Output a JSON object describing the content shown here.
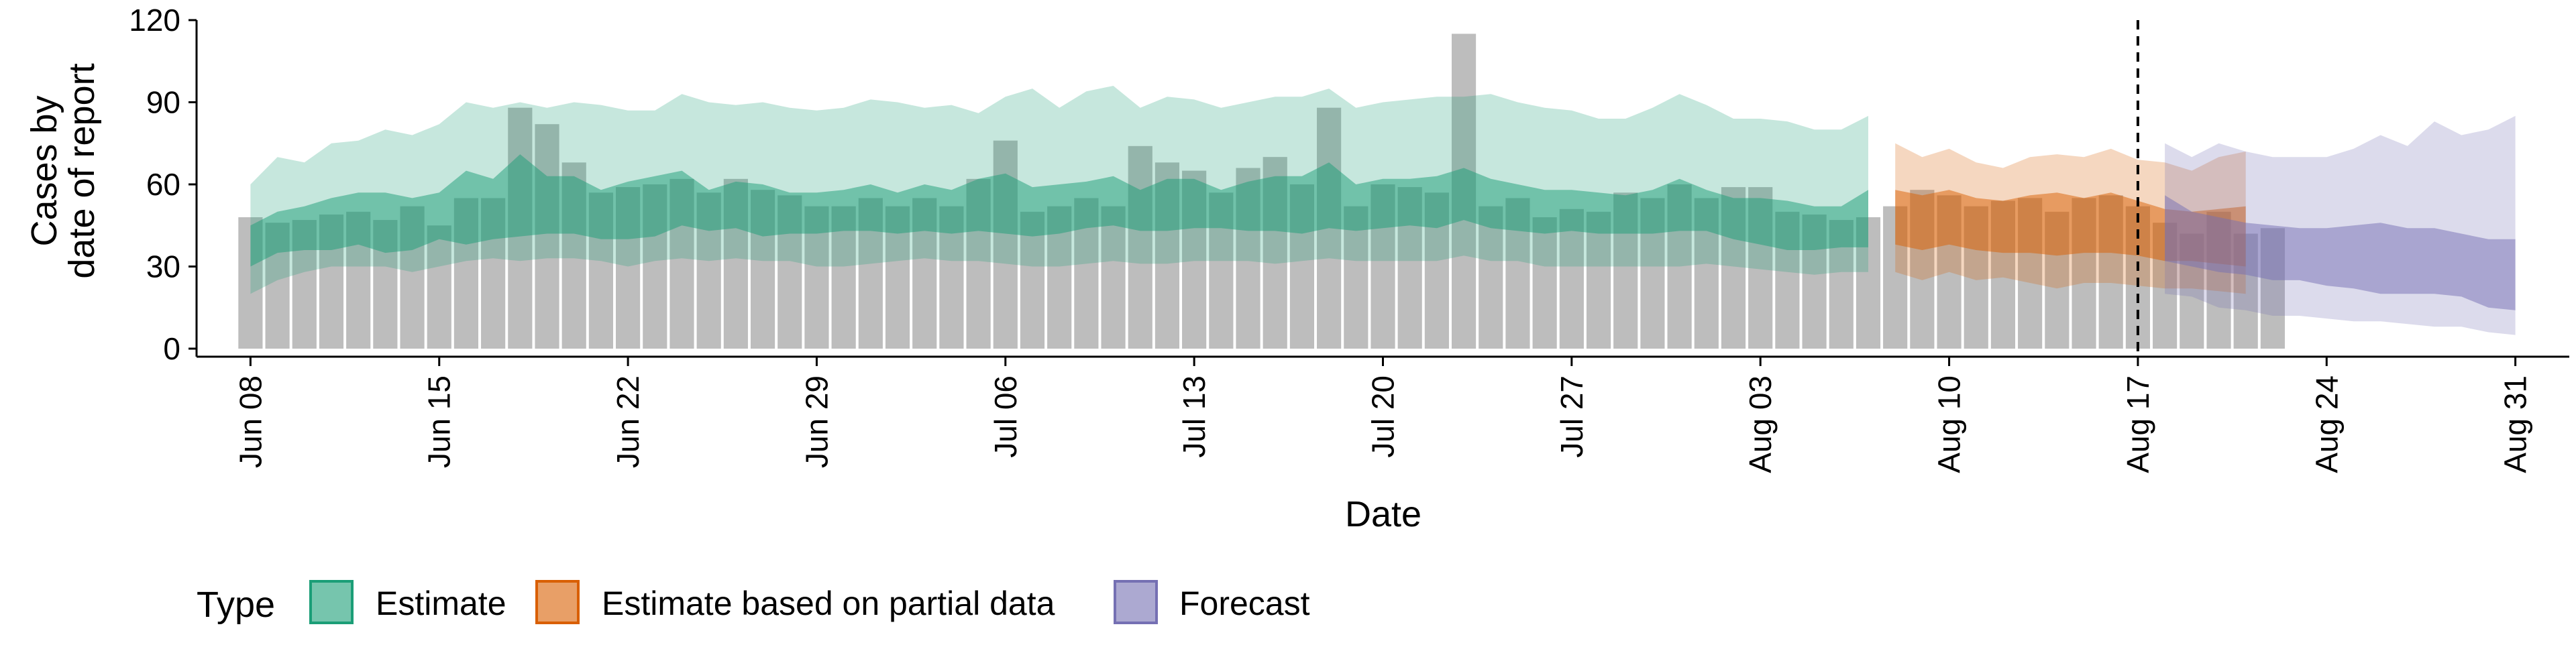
{
  "chart_data": {
    "type": "bar",
    "xlabel": "Date",
    "ylabel_lines": [
      "Cases by",
      "date of report"
    ],
    "ylim": [
      0,
      120
    ],
    "yticks": [
      0,
      30,
      60,
      90,
      120
    ],
    "x_tick_dates": [
      "2020-06-08",
      "2020-06-15",
      "2020-06-22",
      "2020-06-29",
      "2020-07-06",
      "2020-07-13",
      "2020-07-20",
      "2020-07-27",
      "2020-08-03",
      "2020-08-10",
      "2020-08-17",
      "2020-08-24",
      "2020-08-31"
    ],
    "x_tick_labels": [
      "Jun 08",
      "Jun 15",
      "Jun 22",
      "Jun 29",
      "Jul 06",
      "Jul 13",
      "Jul 20",
      "Jul 27",
      "Aug 03",
      "Aug 10",
      "Aug 17",
      "Aug 24",
      "Aug 31"
    ],
    "xlim": [
      "2020-06-06",
      "2020-09-02"
    ],
    "forecast_date": "2020-08-17",
    "grid": false,
    "legend": {
      "title": "Type",
      "position": "bottom-left",
      "entries": [
        {
          "label": "Estimate",
          "fill": "#1b9e77",
          "edge": "#1b9e77"
        },
        {
          "label": "Estimate based on partial data",
          "fill": "#d95f02",
          "edge": "#d95f02"
        },
        {
          "label": "Forecast",
          "fill": "#7570b3",
          "edge": "#7570b3"
        }
      ]
    },
    "colors": {
      "bars": "#bdbdbd",
      "vline": "#000000"
    },
    "reported_cases": {
      "start_date": "2020-06-08",
      "values": [
        48,
        46,
        47,
        49,
        50,
        47,
        52,
        45,
        55,
        55,
        88,
        82,
        68,
        57,
        59,
        60,
        62,
        57,
        62,
        58,
        56,
        52,
        52,
        55,
        52,
        55,
        52,
        62,
        76,
        50,
        52,
        55,
        52,
        74,
        68,
        65,
        57,
        66,
        70,
        60,
        88,
        52,
        60,
        59,
        57,
        115,
        52,
        55,
        48,
        51,
        50,
        57,
        55,
        60,
        55,
        59,
        59,
        50,
        49,
        47,
        48,
        52,
        58,
        56,
        52,
        54,
        55,
        50,
        55,
        56,
        52,
        46,
        42,
        50,
        42,
        44
      ]
    },
    "series": [
      {
        "name": "Estimate",
        "start_date": "2020-06-08",
        "outer_lower": [
          20,
          25,
          28,
          30,
          30,
          30,
          28,
          30,
          32,
          33,
          32,
          33,
          33,
          32,
          30,
          32,
          33,
          32,
          33,
          32,
          32,
          30,
          30,
          31,
          32,
          33,
          32,
          32,
          31,
          30,
          30,
          31,
          32,
          31,
          31,
          32,
          32,
          32,
          31,
          32,
          33,
          32,
          32,
          32,
          32,
          34,
          32,
          32,
          30,
          30,
          30,
          30,
          30,
          30,
          31,
          30,
          29,
          28,
          27,
          28,
          28
        ],
        "outer_upper": [
          60,
          70,
          68,
          75,
          76,
          80,
          78,
          82,
          90,
          88,
          90,
          88,
          90,
          89,
          87,
          87,
          93,
          90,
          89,
          90,
          88,
          87,
          88,
          91,
          90,
          88,
          89,
          86,
          92,
          95,
          88,
          94,
          96,
          88,
          92,
          91,
          88,
          90,
          92,
          92,
          95,
          88,
          90,
          91,
          92,
          92,
          93,
          90,
          88,
          87,
          84,
          84,
          88,
          93,
          89,
          84,
          84,
          83,
          80,
          80,
          85
        ],
        "inner_lower": [
          30,
          35,
          36,
          36,
          38,
          35,
          36,
          40,
          38,
          40,
          41,
          42,
          42,
          40,
          40,
          41,
          45,
          43,
          44,
          41,
          42,
          42,
          43,
          43,
          42,
          43,
          42,
          43,
          42,
          41,
          42,
          44,
          45,
          43,
          43,
          44,
          44,
          43,
          43,
          42,
          44,
          43,
          44,
          45,
          44,
          47,
          44,
          43,
          42,
          43,
          42,
          42,
          42,
          43,
          43,
          40,
          38,
          36,
          36,
          37,
          37
        ],
        "inner_upper": [
          45,
          50,
          52,
          55,
          57,
          57,
          55,
          57,
          65,
          62,
          71,
          63,
          63,
          58,
          61,
          63,
          65,
          58,
          61,
          60,
          57,
          57,
          58,
          60,
          57,
          60,
          58,
          62,
          64,
          59,
          60,
          61,
          63,
          58,
          62,
          62,
          58,
          61,
          63,
          63,
          68,
          60,
          62,
          62,
          63,
          66,
          62,
          60,
          58,
          58,
          57,
          56,
          58,
          62,
          58,
          55,
          55,
          54,
          52,
          52,
          58
        ]
      },
      {
        "name": "Estimate based on partial data",
        "start_date": "2020-08-08",
        "outer_lower": [
          28,
          25,
          28,
          25,
          26,
          24,
          22,
          24,
          24,
          23,
          22,
          22,
          21,
          20
        ],
        "outer_upper": [
          75,
          70,
          73,
          68,
          66,
          70,
          71,
          70,
          73,
          69,
          68,
          65,
          70,
          72
        ],
        "inner_lower": [
          38,
          36,
          38,
          36,
          35,
          35,
          34,
          35,
          35,
          34,
          32,
          32,
          31,
          30
        ],
        "inner_upper": [
          58,
          56,
          58,
          55,
          54,
          56,
          57,
          55,
          57,
          54,
          51,
          50,
          51,
          52
        ]
      },
      {
        "name": "Forecast",
        "start_date": "2020-08-18",
        "outer_lower": [
          20,
          19,
          15,
          14,
          12,
          12,
          11,
          10,
          10,
          9,
          8,
          8,
          6,
          5
        ],
        "outer_upper": [
          75,
          70,
          75,
          72,
          70,
          70,
          70,
          73,
          78,
          74,
          83,
          78,
          80,
          85
        ],
        "inner_lower": [
          32,
          30,
          28,
          27,
          25,
          25,
          23,
          22,
          20,
          20,
          20,
          19,
          15,
          14
        ],
        "inner_upper": [
          56,
          50,
          48,
          46,
          45,
          44,
          44,
          45,
          46,
          44,
          44,
          42,
          40,
          40
        ]
      }
    ]
  }
}
